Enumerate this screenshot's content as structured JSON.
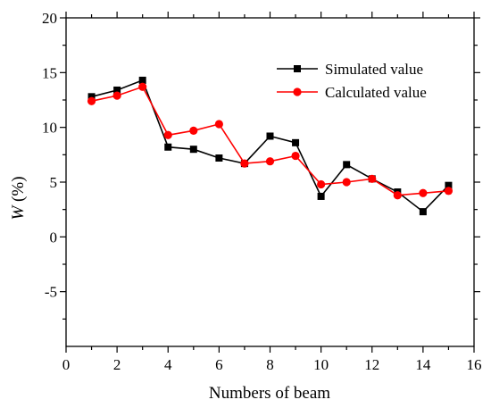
{
  "chart_data": {
    "type": "line",
    "xlabel": "Numbers of beam",
    "ylabel_var": "W",
    "ylabel_unit": " (%)",
    "xlim": [
      0,
      16
    ],
    "ylim": [
      -10,
      20
    ],
    "xticks": [
      0,
      2,
      4,
      6,
      8,
      10,
      12,
      14,
      16
    ],
    "yticks": [
      -5,
      0,
      5,
      10,
      15,
      20
    ],
    "grid": false,
    "legend_position": "top-right",
    "x": [
      1,
      2,
      3,
      4,
      5,
      6,
      7,
      8,
      9,
      10,
      11,
      12,
      13,
      14,
      15
    ],
    "series": [
      {
        "name": "Simulated value",
        "color": "#000000",
        "marker": "square",
        "values": [
          12.8,
          13.4,
          14.3,
          8.2,
          8.0,
          7.2,
          6.7,
          9.2,
          8.6,
          3.7,
          6.6,
          5.3,
          4.1,
          2.3,
          4.7
        ]
      },
      {
        "name": "Calculated value",
        "color": "#ff0000",
        "marker": "circle",
        "values": [
          12.4,
          12.9,
          13.7,
          9.3,
          9.7,
          10.3,
          6.7,
          6.9,
          7.4,
          4.8,
          5.0,
          5.3,
          3.8,
          4.0,
          4.2
        ]
      }
    ]
  }
}
